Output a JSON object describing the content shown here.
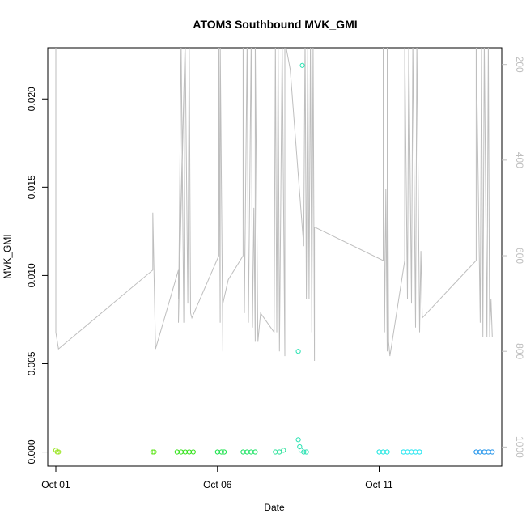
{
  "chart_data": {
    "type": "scatter",
    "title": "ATOM3 Southbound MVK_GMI",
    "xlabel": "Date",
    "ylabel": "MVK_GMI",
    "x_axis": {
      "kind": "date",
      "range": [
        "2016-09-30T18:00",
        "2016-10-14T19:00"
      ],
      "ticks": [
        {
          "value": "2016-10-01",
          "label": "Oct 01"
        },
        {
          "value": "2016-10-06",
          "label": "Oct 06"
        },
        {
          "value": "2016-10-11",
          "label": "Oct 11"
        }
      ]
    },
    "y_axis": {
      "range": [
        -0.0008,
        0.0229
      ],
      "ticks": [
        {
          "value": 0.0,
          "label": "0.000"
        },
        {
          "value": 0.005,
          "label": "0.005"
        },
        {
          "value": 0.01,
          "label": "0.010"
        },
        {
          "value": 0.015,
          "label": "0.015"
        },
        {
          "value": 0.02,
          "label": "0.020"
        }
      ]
    },
    "y2_axis": {
      "range": [
        1040,
        165
      ],
      "reversed": true,
      "color": "#bebebe",
      "ticks": [
        {
          "value": 200,
          "label": "200"
        },
        {
          "value": 400,
          "label": "400"
        },
        {
          "value": 600,
          "label": "600"
        },
        {
          "value": 800,
          "label": "800"
        },
        {
          "value": 1000,
          "label": "1000"
        }
      ]
    },
    "grid": false,
    "legend": "none",
    "series": [
      {
        "kind": "points",
        "axis": "left",
        "groups": [
          {
            "color": "#9ee62a",
            "points": [
              [
                "2016-10-01T00:00",
                0.0001
              ],
              [
                "2016-10-01T01:00",
                0.0
              ],
              [
                "2016-10-01T02:00",
                0.0
              ]
            ]
          },
          {
            "color": "#6ee832",
            "points": [
              [
                "2016-10-04T00:00",
                0.0
              ],
              [
                "2016-10-04T01:00",
                0.0
              ]
            ]
          },
          {
            "color": "#33e21a",
            "points": [
              [
                "2016-10-04T18:00",
                0.0
              ],
              [
                "2016-10-04T21:00",
                0.0
              ],
              [
                "2016-10-05T00:00",
                0.0
              ],
              [
                "2016-10-05T03:00",
                0.0
              ],
              [
                "2016-10-05T06:00",
                0.0
              ]
            ]
          },
          {
            "color": "#1ae24a",
            "points": [
              [
                "2016-10-06T00:00",
                0.0
              ],
              [
                "2016-10-06T03:00",
                0.0
              ],
              [
                "2016-10-06T05:00",
                0.0
              ]
            ]
          },
          {
            "color": "#1ae262",
            "points": [
              [
                "2016-10-06T19:00",
                0.0
              ],
              [
                "2016-10-06T22:00",
                0.0
              ],
              [
                "2016-10-07T01:00",
                0.0
              ],
              [
                "2016-10-07T04:00",
                0.0
              ]
            ]
          },
          {
            "color": "#2ae29a",
            "points": [
              [
                "2016-10-07T19:00",
                0.0
              ],
              [
                "2016-10-07T22:00",
                0.0
              ],
              [
                "2016-10-08T01:00",
                0.0001
              ]
            ]
          },
          {
            "color": "#2ae2b2",
            "points": [
              [
                "2016-10-08T12:00",
                0.0057
              ],
              [
                "2016-10-08T12:00",
                0.0007
              ],
              [
                "2016-10-08T13:00",
                0.0003
              ],
              [
                "2016-10-08T14:00",
                0.0001
              ],
              [
                "2016-10-08T16:00",
                0.0
              ],
              [
                "2016-10-08T18:00",
                0.0
              ],
              [
                "2016-10-08T15:00",
                0.0219
              ]
            ]
          },
          {
            "color": "#1ae6e0",
            "points": [
              [
                "2016-10-11T00:00",
                0.0
              ],
              [
                "2016-10-11T03:00",
                0.0
              ],
              [
                "2016-10-11T06:00",
                0.0
              ]
            ]
          },
          {
            "color": "#1ae4f0",
            "points": [
              [
                "2016-10-11T18:00",
                0.0
              ],
              [
                "2016-10-11T21:00",
                0.0
              ],
              [
                "2016-10-12T00:00",
                0.0
              ],
              [
                "2016-10-12T03:00",
                0.0
              ],
              [
                "2016-10-12T06:00",
                0.0
              ]
            ]
          },
          {
            "color": "#1a90ea",
            "points": [
              [
                "2016-10-14T00:00",
                0.0
              ],
              [
                "2016-10-14T03:00",
                0.0
              ],
              [
                "2016-10-14T06:00",
                0.0
              ],
              [
                "2016-10-14T09:00",
                0.0
              ],
              [
                "2016-10-14T12:00",
                0.0
              ]
            ]
          }
        ]
      },
      {
        "kind": "line",
        "axis": "right",
        "color": "#bebebe",
        "points": [
          [
            "2016-10-01T00:00",
            150
          ],
          [
            "2016-10-01T00:00",
            760
          ],
          [
            "2016-10-01T02:00",
            795
          ],
          [
            "2016-10-04T00:00",
            630
          ],
          [
            "2016-10-04T00:00",
            510
          ],
          [
            "2016-10-04T02:00",
            795
          ],
          [
            "2016-10-04T19:00",
            630
          ],
          [
            "2016-10-04T19:00",
            690
          ],
          [
            "2016-10-05T00:00",
            150
          ],
          [
            "2016-10-04T19:00",
            740
          ],
          [
            "2016-10-04T21:00",
            150
          ],
          [
            "2016-10-04T23:00",
            740
          ],
          [
            "2016-10-05T00:00",
            150
          ],
          [
            "2016-10-05T02:00",
            700
          ],
          [
            "2016-10-05T03:00",
            150
          ],
          [
            "2016-10-05T04:00",
            720
          ],
          [
            "2016-10-05T05:00",
            730
          ],
          [
            "2016-10-06T01:00",
            600
          ],
          [
            "2016-10-06T01:00",
            150
          ],
          [
            "2016-10-06T02:00",
            740
          ],
          [
            "2016-10-06T02:00",
            150
          ],
          [
            "2016-10-06T04:00",
            800
          ],
          [
            "2016-10-06T04:00",
            700
          ],
          [
            "2016-10-06T08:00",
            650
          ],
          [
            "2016-10-06T19:00",
            600
          ],
          [
            "2016-10-06T19:00",
            150
          ],
          [
            "2016-10-06T20:00",
            720
          ],
          [
            "2016-10-06T22:00",
            150
          ],
          [
            "2016-10-06T23:00",
            740
          ],
          [
            "2016-10-07T01:00",
            150
          ],
          [
            "2016-10-07T02:00",
            750
          ],
          [
            "2016-10-07T03:00",
            500
          ],
          [
            "2016-10-07T04:00",
            780
          ],
          [
            "2016-10-07T04:00",
            150
          ],
          [
            "2016-10-07T06:00",
            780
          ],
          [
            "2016-10-07T08:00",
            720
          ],
          [
            "2016-10-07T18:00",
            760
          ],
          [
            "2016-10-07T19:00",
            150
          ],
          [
            "2016-10-07T20:00",
            760
          ],
          [
            "2016-10-07T21:00",
            150
          ],
          [
            "2016-10-07T22:00",
            800
          ],
          [
            "2016-10-08T00:00",
            150
          ],
          [
            "2016-10-08T02:00",
            810
          ],
          [
            "2016-10-08T02:00",
            530
          ],
          [
            "2016-10-08T02:00",
            150
          ],
          [
            "2016-10-08T06:00",
            210
          ],
          [
            "2016-10-08T16:00",
            580
          ],
          [
            "2016-10-08T17:00",
            150
          ],
          [
            "2016-10-08T18:00",
            690
          ],
          [
            "2016-10-08T19:00",
            150
          ],
          [
            "2016-10-08T20:00",
            690
          ],
          [
            "2016-10-08T21:00",
            150
          ],
          [
            "2016-10-08T22:00",
            760
          ],
          [
            "2016-10-08T23:00",
            150
          ],
          [
            "2016-10-09T00:00",
            820
          ],
          [
            "2016-10-09T00:00",
            540
          ],
          [
            "2016-10-11T03:00",
            610
          ],
          [
            "2016-10-11T03:00",
            150
          ],
          [
            "2016-10-11T04:00",
            760
          ],
          [
            "2016-10-11T05:00",
            460
          ],
          [
            "2016-10-11T06:00",
            800
          ],
          [
            "2016-10-11T06:00",
            150
          ],
          [
            "2016-10-11T07:00",
            780
          ],
          [
            "2016-10-11T08:00",
            810
          ],
          [
            "2016-10-11T19:00",
            610
          ],
          [
            "2016-10-11T19:00",
            150
          ],
          [
            "2016-10-11T21:00",
            690
          ],
          [
            "2016-10-11T22:00",
            150
          ],
          [
            "2016-10-12T00:00",
            700
          ],
          [
            "2016-10-12T01:00",
            150
          ],
          [
            "2016-10-12T03:00",
            750
          ],
          [
            "2016-10-12T04:00",
            150
          ],
          [
            "2016-10-12T06:00",
            760
          ],
          [
            "2016-10-12T07:00",
            590
          ],
          [
            "2016-10-12T08:00",
            730
          ],
          [
            "2016-10-14T00:00",
            610
          ],
          [
            "2016-10-14T00:00",
            150
          ],
          [
            "2016-10-14T03:00",
            740
          ],
          [
            "2016-10-14T04:00",
            150
          ],
          [
            "2016-10-14T05:00",
            770
          ],
          [
            "2016-10-14T06:00",
            150
          ],
          [
            "2016-10-14T08:00",
            770
          ],
          [
            "2016-10-14T09:00",
            150
          ],
          [
            "2016-10-14T10:00",
            770
          ],
          [
            "2016-10-14T11:00",
            690
          ],
          [
            "2016-10-14T12:00",
            770
          ]
        ]
      }
    ]
  }
}
